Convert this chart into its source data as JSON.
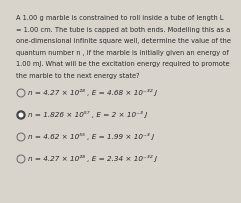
{
  "bg_color": "#d8d4cc",
  "question_lines": [
    "A 1.00 g marble is constrained to roll inside a tube of length L",
    "= 1.00 cm. The tube is capped at both ends. Modelling this as a",
    "one-dimensional infinite square well, determine the value of the",
    "quantum number n , if the marble is initially given an energy of",
    "1.00 mJ. What will be the excitation energy required to promote",
    "the marble to the next energy state?"
  ],
  "options": [
    "n = 4.27 × 10²⁸ , E = 4.68 × 10⁻³² J",
    "n = 1.826 × 10⁵⁷ , E = 2 × 10⁻³ J",
    "n = 4.62 × 10⁵⁵ , E = 1.99 × 10⁻³ J",
    "n = 4.27 × 10²⁸ , E = 2.34 × 10⁻³² J"
  ],
  "selected": [
    false,
    true,
    false,
    false
  ],
  "question_fontsize": 4.8,
  "option_fontsize": 5.2,
  "text_color": "#2a2a2a",
  "radio_color": "#666666",
  "selected_fill_color": "#444444"
}
